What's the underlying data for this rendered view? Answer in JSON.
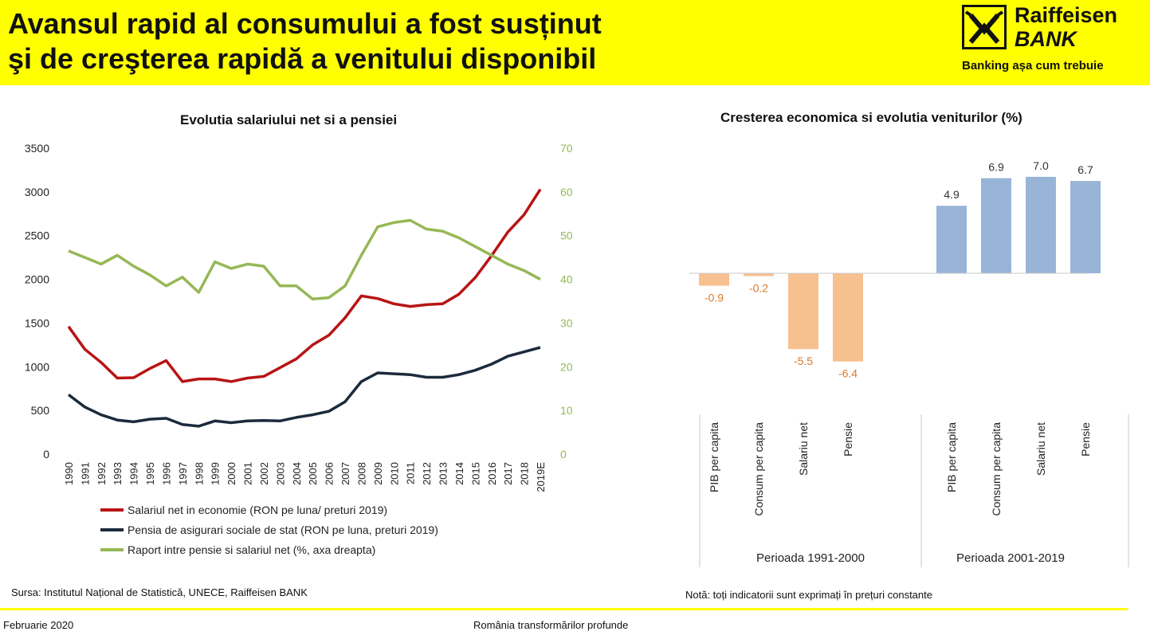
{
  "header": {
    "title_line1": "Avansul rapid al consumului a fost susținut",
    "title_line2": "şi de creşterea rapidă a venitului disponibil",
    "logo_line1": "Raiffeisen",
    "logo_line2": "BANK",
    "logo_tagline": "Banking așa cum trebuie"
  },
  "colors": {
    "header_bg": "#ffff00",
    "salary": "#b81414",
    "pension": "#1c2a3c",
    "ratio": "#96b856",
    "bar_negative": "#f7c08f",
    "bar_positive": "#98b5d8",
    "label_negative": "#d97a2b"
  },
  "chart_data": [
    {
      "type": "line",
      "title": "Evolutia salariului net si a pensiei",
      "categories": [
        "1990",
        "1991",
        "1992",
        "1993",
        "1994",
        "1995",
        "1996",
        "1997",
        "1998",
        "1999",
        "2000",
        "2001",
        "2002",
        "2003",
        "2004",
        "2005",
        "2006",
        "2007",
        "2008",
        "2009",
        "2010",
        "2011",
        "2012",
        "2013",
        "2014",
        "2015",
        "2016",
        "2017",
        "2018",
        "2019E"
      ],
      "y_left": {
        "min": 0,
        "max": 3500,
        "ticks": [
          "0",
          "500",
          "1000",
          "1500",
          "2000",
          "2500",
          "3000",
          "3500"
        ]
      },
      "y_right": {
        "min": 0,
        "max": 70,
        "ticks": [
          "0",
          "10",
          "20",
          "30",
          "40",
          "50",
          "60",
          "70"
        ]
      },
      "grid": false,
      "legend_position": "bottom-left",
      "series": [
        {
          "name": "Salariul net in economie (RON pe luna/ preturi 2019)",
          "axis": "left",
          "color": "#b81414",
          "values": [
            1460,
            1200,
            1050,
            870,
            875,
            980,
            1070,
            830,
            860,
            860,
            830,
            870,
            890,
            990,
            1090,
            1250,
            1360,
            1560,
            1810,
            1780,
            1720,
            1690,
            1710,
            1720,
            1830,
            2020,
            2270,
            2540,
            2740,
            3030
          ]
        },
        {
          "name": "Pensia de asigurari sociale de stat (RON pe luna, preturi 2019)",
          "axis": "left",
          "color": "#1c2a3c",
          "values": [
            680,
            540,
            450,
            390,
            370,
            400,
            410,
            340,
            320,
            380,
            360,
            380,
            385,
            380,
            420,
            450,
            490,
            600,
            830,
            930,
            920,
            910,
            880,
            880,
            910,
            960,
            1030,
            1120,
            1170,
            1220
          ]
        },
        {
          "name": "Raport intre pensie si salariul net (%, axa dreapta)",
          "axis": "right",
          "color": "#96b856",
          "values": [
            46.5,
            45,
            43.5,
            45.5,
            43,
            41,
            38.5,
            40.5,
            37,
            44,
            42.5,
            43.5,
            43,
            38.5,
            38.5,
            35.5,
            35.8,
            38.5,
            45.5,
            52,
            53,
            53.5,
            51.5,
            51,
            49.5,
            47.5,
            45.5,
            43.5,
            42,
            40
          ]
        }
      ]
    },
    {
      "type": "bar",
      "title": "Cresterea economica si evolutia veniturilor (%)",
      "groups": [
        {
          "label": "Perioada 1991-2000",
          "categories": [
            "PIB per capita",
            "Consum per capita",
            "Salariu net",
            "Pensie"
          ],
          "values": [
            -0.9,
            -0.2,
            -5.5,
            -6.4
          ]
        },
        {
          "label": "Perioada 2001-2019",
          "categories": [
            "PIB per capita",
            "Consum per capita",
            "Salariu net",
            "Pensie"
          ],
          "values": [
            4.9,
            6.9,
            7.0,
            6.7
          ]
        }
      ],
      "value_labels": [
        "-0.9",
        "-0.2",
        "-5.5",
        "-6.4",
        "4.9",
        "6.9",
        "7.0",
        "6.7"
      ],
      "ylim": [
        -7,
        8
      ]
    }
  ],
  "footnotes": {
    "source": "Sursa: Institutul Național de Statistică, UNECE, Raiffeisen BANK",
    "note": "Notă: toți indicatorii sunt exprimați în prețuri constante",
    "date": "Februarie 2020",
    "center": "România transformărilor profunde"
  }
}
